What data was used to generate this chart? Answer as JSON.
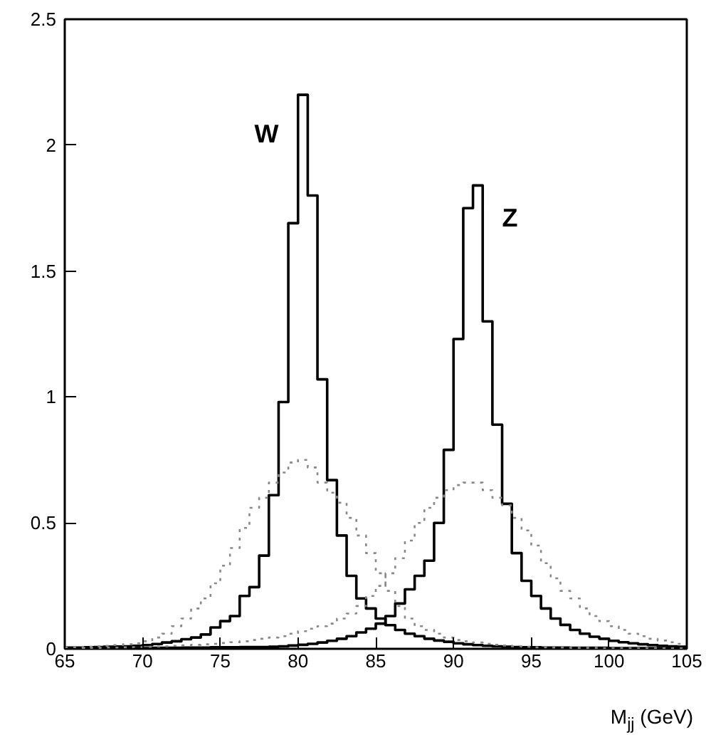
{
  "chart_data": {
    "type": "histogram",
    "xlabel": "M$_{jj}$ (GeV)",
    "bins": [
      65,
      65.625,
      66.25,
      66.875,
      67.5,
      68.125,
      68.75,
      69.375,
      70,
      70.625,
      71.25,
      71.875,
      72.5,
      73.125,
      73.75,
      74.375,
      75,
      75.625,
      76.25,
      76.875,
      77.5,
      78.125,
      78.75,
      79.375,
      80,
      80.625,
      81.25,
      81.875,
      82.5,
      83.125,
      83.75,
      84.375,
      85,
      85.625,
      86.25,
      86.875,
      87.5,
      88.125,
      88.75,
      89.375,
      90,
      90.625,
      91.25,
      91.875,
      92.5,
      93.125,
      93.75,
      94.375,
      95,
      95.625,
      96.25,
      96.875,
      97.5,
      98.125,
      98.75,
      99.375,
      100,
      100.625,
      101.25,
      101.875,
      102.5,
      103.125,
      103.75,
      104.375,
      105
    ],
    "series": [
      {
        "name": "W",
        "color": "#000000",
        "line_style": "solid",
        "values": [
          0.005,
          0.005,
          0.006,
          0.007,
          0.008,
          0.009,
          0.01,
          0.012,
          0.015,
          0.019,
          0.025,
          0.03,
          0.038,
          0.045,
          0.057,
          0.085,
          0.11,
          0.13,
          0.21,
          0.245,
          0.37,
          0.61,
          0.98,
          1.69,
          2.2,
          1.8,
          1.07,
          0.67,
          0.45,
          0.29,
          0.2,
          0.16,
          0.12,
          0.094,
          0.075,
          0.06,
          0.05,
          0.04,
          0.033,
          0.028,
          0.022,
          0.018,
          0.015,
          0.012,
          0.01,
          0.008,
          0.007,
          0.006,
          0.006,
          0.005,
          0.005,
          0.005,
          0.004,
          0.004,
          0.004,
          0.004,
          0.003,
          0.003,
          0.003,
          0.003,
          0.003,
          0.003,
          0.003,
          0.003
        ]
      },
      {
        "name": "Z",
        "color": "#000000",
        "line_style": "solid",
        "values": [
          0.002,
          0.002,
          0.002,
          0.002,
          0.003,
          0.003,
          0.003,
          0.003,
          0.003,
          0.004,
          0.004,
          0.004,
          0.005,
          0.005,
          0.005,
          0.006,
          0.006,
          0.006,
          0.007,
          0.007,
          0.007,
          0.008,
          0.01,
          0.013,
          0.016,
          0.02,
          0.025,
          0.032,
          0.04,
          0.05,
          0.065,
          0.08,
          0.1,
          0.13,
          0.18,
          0.236,
          0.29,
          0.35,
          0.5,
          0.79,
          1.23,
          1.75,
          1.84,
          1.3,
          0.89,
          0.576,
          0.38,
          0.27,
          0.21,
          0.16,
          0.12,
          0.095,
          0.075,
          0.06,
          0.048,
          0.04,
          0.032,
          0.026,
          0.022,
          0.018,
          0.015,
          0.012,
          0.01,
          0.008
        ]
      },
      {
        "color": "#888888",
        "line_style": "dotted",
        "values": [
          0.005,
          0.006,
          0.008,
          0.01,
          0.012,
          0.015,
          0.018,
          0.022,
          0.03,
          0.045,
          0.06,
          0.09,
          0.12,
          0.16,
          0.2,
          0.26,
          0.33,
          0.4,
          0.48,
          0.56,
          0.6,
          0.66,
          0.7,
          0.74,
          0.75,
          0.72,
          0.66,
          0.62,
          0.58,
          0.52,
          0.45,
          0.38,
          0.3,
          0.23,
          0.17,
          0.12,
          0.09,
          0.075,
          0.06,
          0.045,
          0.035,
          0.03,
          0.025,
          0.02,
          0.016,
          0.013,
          0.01,
          0.008,
          0.006,
          0.006,
          0.005,
          0.005,
          0.004,
          0.004,
          0.004,
          0.003,
          0.003,
          0.003,
          0.003,
          0.002,
          0.002,
          0.002,
          0.002,
          0.002
        ]
      },
      {
        "color": "#888888",
        "line_style": "dotted",
        "values": [
          0.003,
          0.003,
          0.004,
          0.004,
          0.005,
          0.005,
          0.006,
          0.007,
          0.008,
          0.009,
          0.01,
          0.012,
          0.014,
          0.016,
          0.018,
          0.02,
          0.023,
          0.026,
          0.03,
          0.035,
          0.04,
          0.045,
          0.05,
          0.06,
          0.07,
          0.08,
          0.09,
          0.1,
          0.12,
          0.14,
          0.17,
          0.21,
          0.25,
          0.3,
          0.36,
          0.43,
          0.5,
          0.56,
          0.6,
          0.63,
          0.65,
          0.66,
          0.66,
          0.63,
          0.6,
          0.57,
          0.52,
          0.47,
          0.41,
          0.34,
          0.28,
          0.23,
          0.2,
          0.16,
          0.13,
          0.11,
          0.09,
          0.075,
          0.06,
          0.05,
          0.04,
          0.033,
          0.026,
          0.02
        ]
      }
    ],
    "xlim": [
      65,
      105
    ],
    "xticks": [
      65,
      70,
      75,
      80,
      85,
      90,
      95,
      100,
      105
    ],
    "ylim": [
      0,
      2.5
    ],
    "yticks": [
      0,
      0.5,
      1,
      1.5,
      2,
      2.5
    ],
    "grid": false
  }
}
